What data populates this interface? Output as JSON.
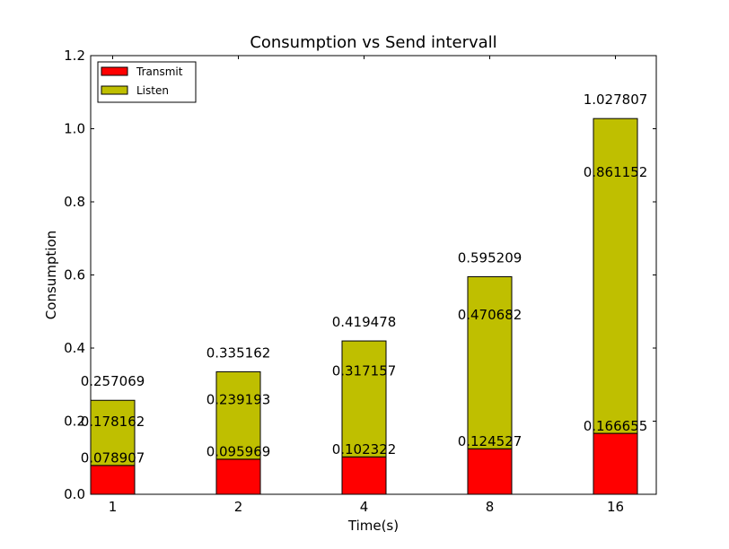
{
  "chart_data": {
    "type": "bar",
    "stacked": true,
    "title": "Consumption vs Send intervall",
    "xlabel": "Time(s)",
    "ylabel": "Consumption",
    "categories": [
      "1",
      "2",
      "4",
      "8",
      "16"
    ],
    "ylim": [
      0.0,
      1.2
    ],
    "yticks": [
      "0.0",
      "0.2",
      "0.4",
      "0.6",
      "0.8",
      "1.0",
      "1.2"
    ],
    "grid": false,
    "legend_position": "top-left",
    "series": [
      {
        "name": "Transmit",
        "color": "#ff0000",
        "values": [
          0.078907,
          0.095969,
          0.102322,
          0.124527,
          0.166655
        ],
        "labels": [
          "0.078907",
          "0.095969",
          "0.102322",
          "0.124527",
          "0.166655"
        ]
      },
      {
        "name": "Listen",
        "color": "#bfbf00",
        "values": [
          0.178162,
          0.239193,
          0.317157,
          0.470682,
          0.861152
        ],
        "labels": [
          "0.178162",
          "0.239193",
          "0.317157",
          "0.470682",
          "0.861152"
        ]
      }
    ],
    "totals": [
      0.257069,
      0.335162,
      0.419478,
      0.595209,
      1.027807
    ],
    "total_labels": [
      "0.257069",
      "0.335162",
      "0.419478",
      "0.595209",
      "1.027807"
    ]
  }
}
